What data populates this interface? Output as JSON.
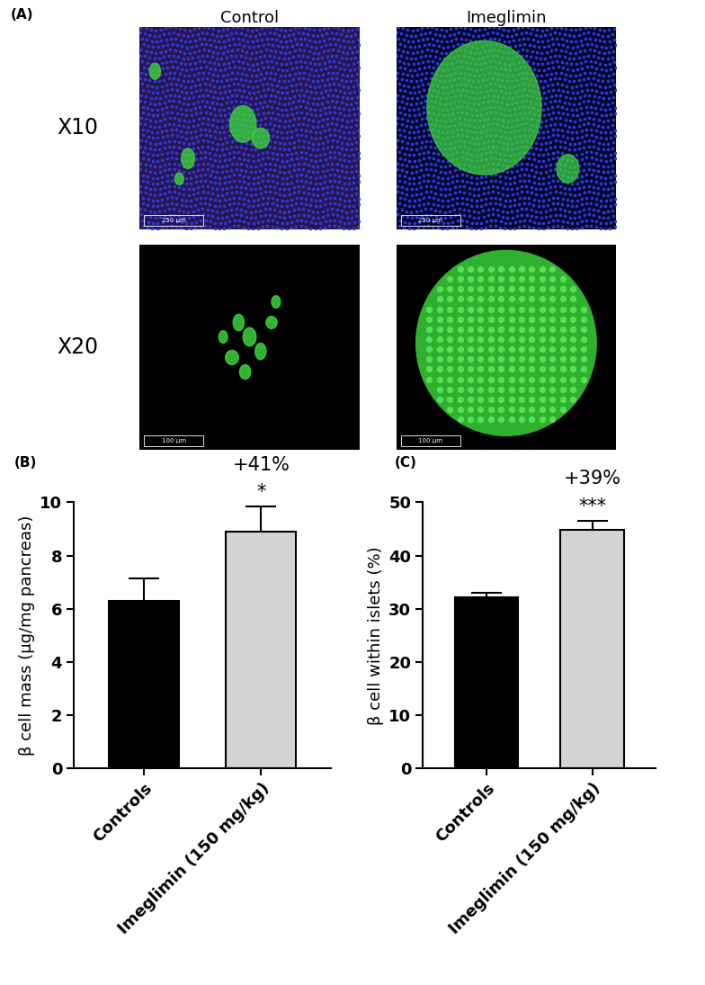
{
  "image_panel": {
    "label": "(A)",
    "columns": [
      "Control",
      "Imeglimin"
    ],
    "rows": [
      "X10",
      "X20"
    ],
    "scale_bars": [
      "250 µm",
      "100 µm"
    ]
  },
  "chart_data": [
    {
      "type": "bar",
      "label": "(B)",
      "categories": [
        "Controls",
        "Imeglimin (150 mg/kg)"
      ],
      "values": [
        6.3,
        8.9
      ],
      "errors": [
        0.85,
        0.95
      ],
      "colors": [
        "#000000",
        "#d3d3d3"
      ],
      "y_label": "β cell mass (µg/mg pancreas)",
      "ylim": [
        0,
        10
      ],
      "yticks": [
        0,
        2,
        4,
        6,
        8,
        10
      ],
      "annotations": [
        {
          "category": "Imeglimin (150 mg/kg)",
          "texts": [
            "+41%",
            "*"
          ]
        }
      ]
    },
    {
      "type": "bar",
      "label": "(C)",
      "categories": [
        "Controls",
        "Imeglimin (150 mg/kg)"
      ],
      "values": [
        32.2,
        44.8
      ],
      "errors": [
        0.8,
        1.8
      ],
      "colors": [
        "#000000",
        "#d3d3d3"
      ],
      "y_label": "β cell within islets (%)",
      "ylim": [
        0,
        50
      ],
      "yticks": [
        0,
        10,
        20,
        30,
        40,
        50
      ],
      "annotations": [
        {
          "category": "Imeglimin (150 mg/kg)",
          "texts": [
            "+39%",
            "***"
          ]
        }
      ]
    }
  ]
}
